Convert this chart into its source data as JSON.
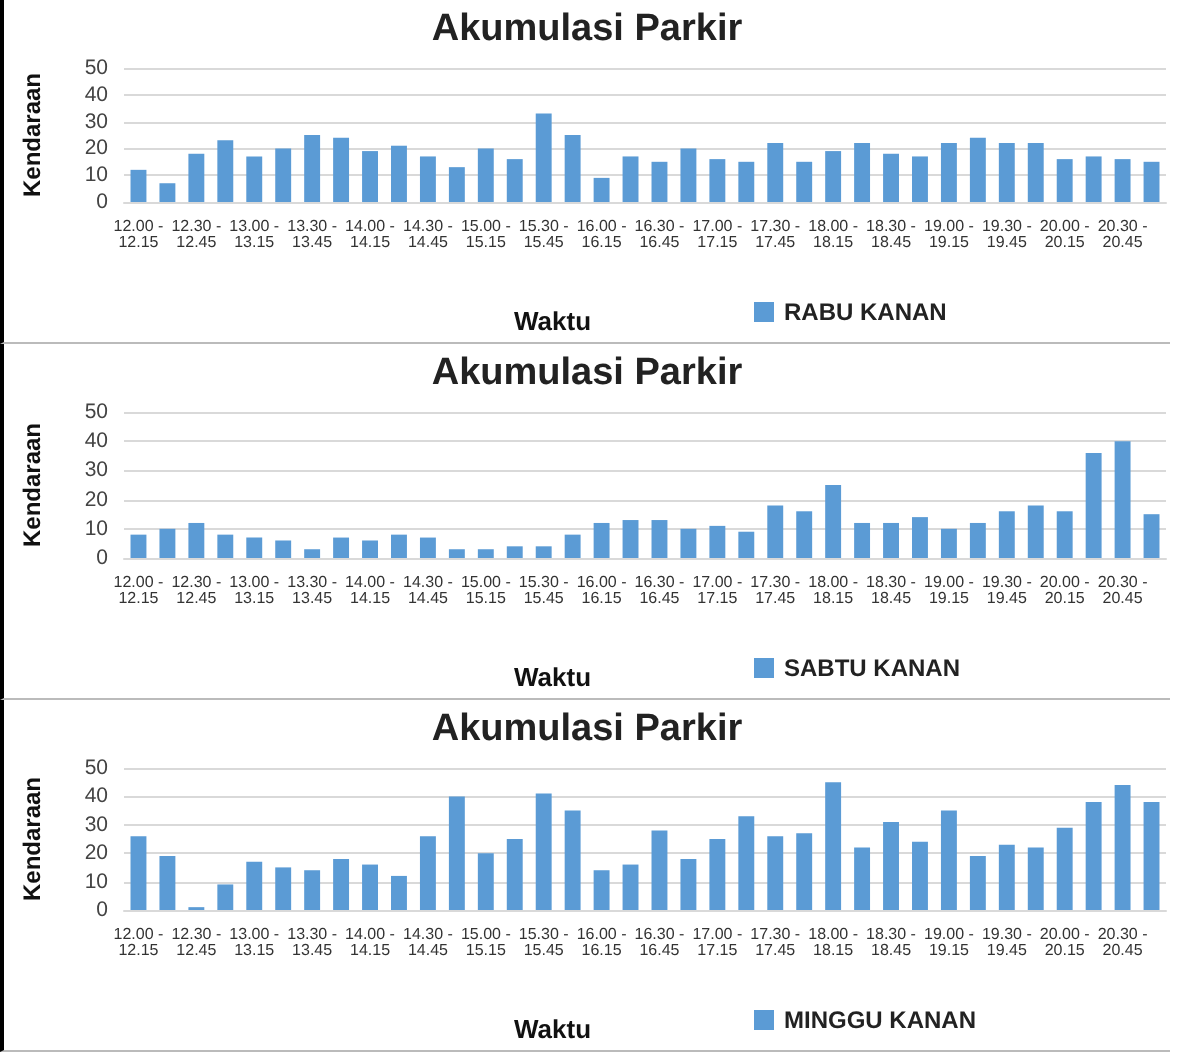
{
  "chart_data": [
    {
      "type": "bar",
      "title": "Akumulasi Parkir",
      "xlabel": "Waktu",
      "ylabel": "Kendaraan",
      "categories": [
        "12.00 - 12.15",
        null,
        "12.30 - 12.45",
        null,
        "13.00 - 13.15",
        null,
        "13.30 - 13.45",
        null,
        "14.00 - 14.15",
        null,
        "14.30 - 14.45",
        null,
        "15.00 - 15.15",
        null,
        "15.30 - 15.45",
        null,
        "16.00 - 16.15",
        null,
        "16.30 - 16.45",
        null,
        "17.00 - 17.15",
        null,
        "17.30 - 17.45",
        null,
        "18.00 - 18.15",
        null,
        "18.30 - 18.45",
        null,
        "19.00 - 19.15",
        null,
        "19.30 - 19.45",
        null,
        "20.00 - 20.15",
        null,
        "20.30 - 20.45",
        null
      ],
      "series": [
        {
          "name": "RABU KANAN",
          "color": "#5b9bd5",
          "values": [
            12,
            7,
            18,
            23,
            17,
            20,
            25,
            24,
            19,
            21,
            17,
            13,
            20,
            16,
            33,
            25,
            9,
            17,
            15,
            20,
            16,
            15,
            22,
            15,
            19,
            22,
            18,
            17,
            22,
            24,
            22,
            22,
            16,
            17,
            16,
            15
          ]
        }
      ],
      "ylim": [
        0,
        50
      ],
      "yticks": [
        0,
        10,
        20,
        30,
        40,
        50
      ],
      "grid": "y",
      "legend": "bottom"
    },
    {
      "type": "bar",
      "title": "Akumulasi Parkir",
      "xlabel": "Waktu",
      "ylabel": "Kendaraan",
      "categories": [
        "12.00 - 12.15",
        null,
        "12.30 - 12.45",
        null,
        "13.00 - 13.15",
        null,
        "13.30 - 13.45",
        null,
        "14.00 - 14.15",
        null,
        "14.30 - 14.45",
        null,
        "15.00 - 15.15",
        null,
        "15.30 - 15.45",
        null,
        "16.00 - 16.15",
        null,
        "16.30 - 16.45",
        null,
        "17.00 - 17.15",
        null,
        "17.30 - 17.45",
        null,
        "18.00 - 18.15",
        null,
        "18.30 - 18.45",
        null,
        "19.00 - 19.15",
        null,
        "19.30 - 19.45",
        null,
        "20.00 - 20.15",
        null,
        "20.30 - 20.45",
        null
      ],
      "series": [
        {
          "name": "SABTU KANAN",
          "color": "#5b9bd5",
          "values": [
            8,
            10,
            12,
            8,
            7,
            6,
            3,
            7,
            6,
            8,
            7,
            3,
            3,
            4,
            4,
            8,
            12,
            13,
            13,
            10,
            11,
            9,
            18,
            16,
            25,
            12,
            12,
            14,
            10,
            12,
            16,
            18,
            16,
            36,
            40,
            15
          ]
        }
      ],
      "ylim": [
        0,
        50
      ],
      "yticks": [
        0,
        10,
        20,
        30,
        40,
        50
      ],
      "grid": "y",
      "legend": "bottom"
    },
    {
      "type": "bar",
      "title": "Akumulasi Parkir",
      "xlabel": "Waktu",
      "ylabel": "Kendaraan",
      "categories": [
        "12.00 - 12.15",
        null,
        "12.30 - 12.45",
        null,
        "13.00 - 13.15",
        null,
        "13.30 - 13.45",
        null,
        "14.00 - 14.15",
        null,
        "14.30 - 14.45",
        null,
        "15.00 - 15.15",
        null,
        "15.30 - 15.45",
        null,
        "16.00 - 16.15",
        null,
        "16.30 - 16.45",
        null,
        "17.00 - 17.15",
        null,
        "17.30 - 17.45",
        null,
        "18.00 - 18.15",
        null,
        "18.30 - 18.45",
        null,
        "19.00 - 19.15",
        null,
        "19.30 - 19.45",
        null,
        "20.00 - 20.15",
        null,
        "20.30 - 20.45",
        null
      ],
      "series": [
        {
          "name": "MINGGU KANAN",
          "color": "#5b9bd5",
          "values": [
            26,
            19,
            1,
            9,
            17,
            15,
            14,
            18,
            16,
            12,
            26,
            40,
            20,
            25,
            41,
            35,
            14,
            16,
            28,
            18,
            25,
            33,
            26,
            27,
            45,
            22,
            31,
            24,
            35,
            19,
            23,
            22,
            29,
            38,
            44,
            38
          ]
        }
      ],
      "ylim": [
        0,
        50
      ],
      "yticks": [
        0,
        10,
        20,
        30,
        40,
        50
      ],
      "grid": "y",
      "legend": "bottom"
    }
  ]
}
